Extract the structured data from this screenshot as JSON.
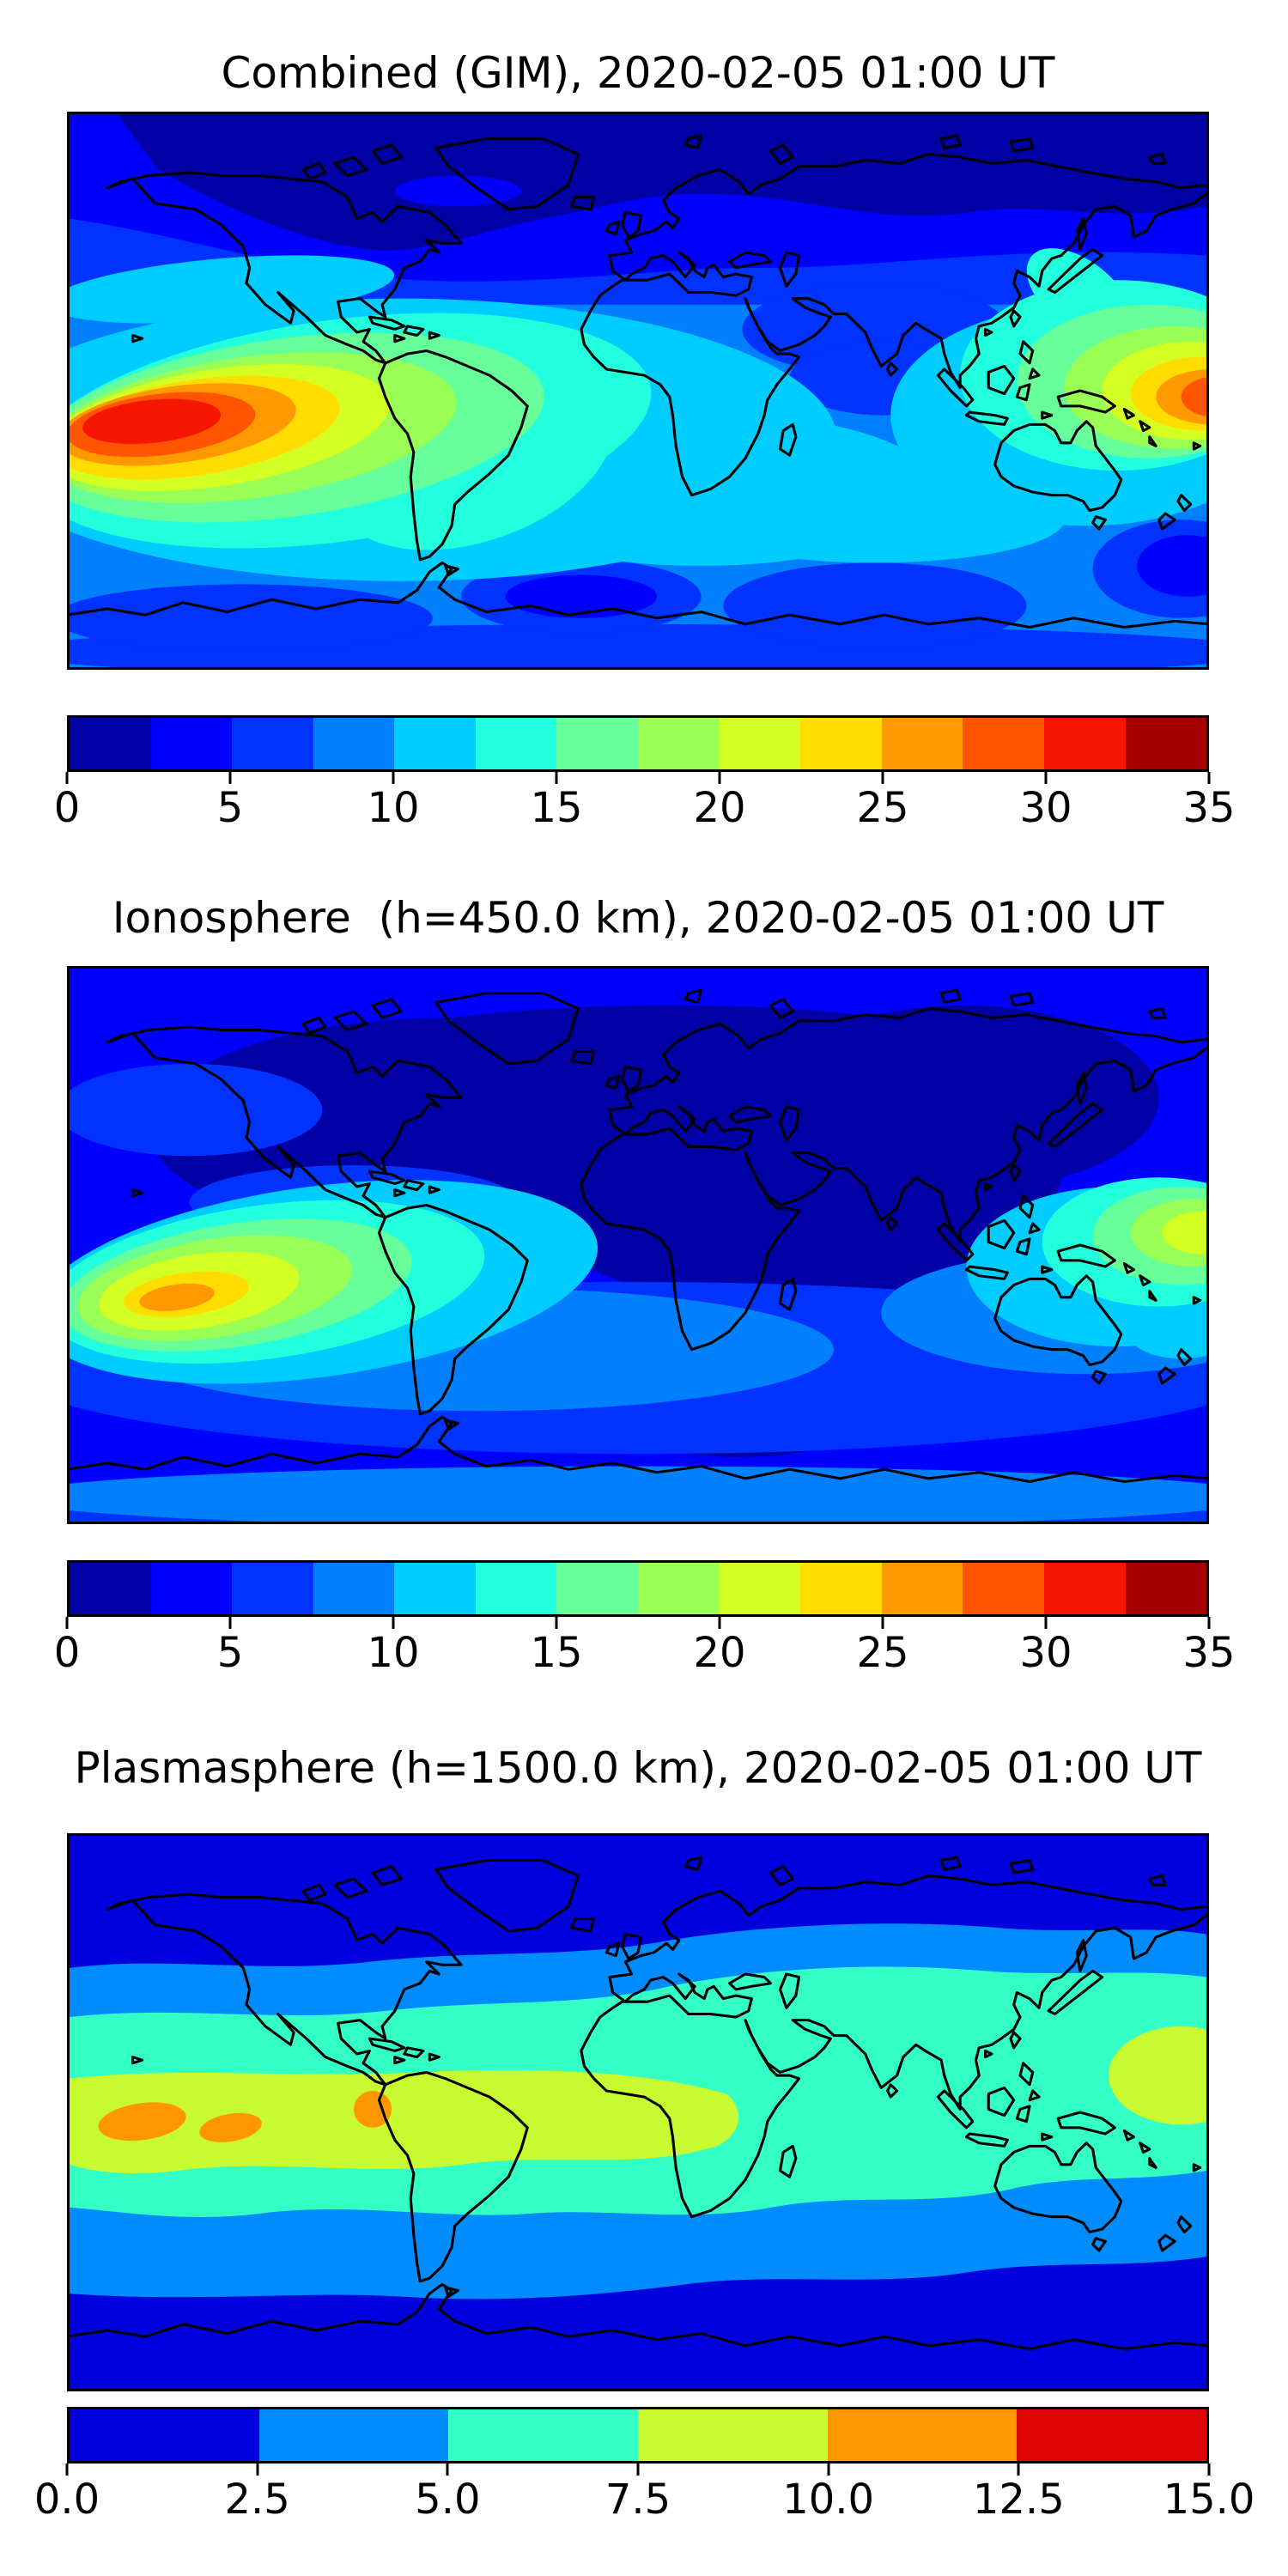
{
  "figure": {
    "background_color": "#ffffff",
    "description": "Three stacked filled-contour global maps of total electron content with horizontal jet colorbars",
    "timestamp": "2020-02-05 01:00 UT"
  },
  "chart_data": [
    {
      "type": "heatmap",
      "subtype": "filled contour map, equirectangular world projection with black coastlines",
      "title": "Combined (GIM), 2020-02-05 01:00 UT",
      "layer": "Combined (GIM)",
      "timestamp": "2020-02-05 01:00 UT",
      "map_extent": {
        "lon": [
          -180,
          180
        ],
        "lat": [
          -90,
          90
        ]
      },
      "coastline_color": "#000000",
      "colorbar": {
        "orientation": "horizontal",
        "min": 0,
        "max": 35,
        "level_step": 2.5,
        "ticks": [
          "0",
          "5",
          "10",
          "15",
          "20",
          "25",
          "30",
          "35"
        ],
        "segment_colors": [
          "#0000a4",
          "#0000ff",
          "#0033ff",
          "#0080ff",
          "#00ccff",
          "#22ffdd",
          "#66ff99",
          "#99ff55",
          "#d4ff22",
          "#ffdd00",
          "#ff9900",
          "#ff5500",
          "#f51500",
          "#a60000"
        ]
      },
      "features": [
        {
          "name": "primary maximum, south-central Pacific west of South America",
          "approx_lon": -150,
          "approx_lat": -16,
          "peak_band": "30 to 32.5",
          "peak_color": "#f51500"
        },
        {
          "name": "secondary maximum, western Pacific near New Guinea (touches right edge)",
          "approx_lon": 178,
          "approx_lat": -5,
          "peak_band": "27.5 to 30",
          "peak_color": "#ff5500"
        },
        {
          "name": "South America covered by 12.5-15 turquoise band",
          "approx_lon": -60,
          "approx_lat": -20
        },
        {
          "name": "high-latitude northern minimum over Arctic/Canada/Siberia",
          "band": "0 to 2.5"
        },
        {
          "name": "local minima in far southern ocean (south Atlantic, south of Australia)",
          "band": "2.5 to 5"
        },
        {
          "name": "mid/low-latitude background",
          "band": "7.5 to 12.5"
        }
      ]
    },
    {
      "type": "heatmap",
      "subtype": "filled contour map, equirectangular world projection with black coastlines",
      "title": "Ionosphere  (h=450.0 km), 2020-02-05 01:00 UT",
      "layer": "Ionosphere",
      "height_label": "h=450.0 km",
      "timestamp": "2020-02-05 01:00 UT",
      "map_extent": {
        "lon": [
          -180,
          180
        ],
        "lat": [
          -90,
          90
        ]
      },
      "coastline_color": "#000000",
      "colorbar": {
        "orientation": "horizontal",
        "min": 0,
        "max": 35,
        "level_step": 2.5,
        "ticks": [
          "0",
          "5",
          "10",
          "15",
          "20",
          "25",
          "30",
          "35"
        ],
        "segment_colors": [
          "#0000a4",
          "#0000ff",
          "#0033ff",
          "#0080ff",
          "#00ccff",
          "#22ffdd",
          "#66ff99",
          "#99ff55",
          "#d4ff22",
          "#ffdd00",
          "#ff9900",
          "#ff5500",
          "#f51500",
          "#a60000"
        ]
      },
      "features": [
        {
          "name": "maximum, south-central Pacific",
          "approx_lon": -150,
          "approx_lat": -20,
          "peak_band": "25 to 27.5",
          "peak_color": "#ff9900"
        },
        {
          "name": "secondary maximum, western Pacific near right edge",
          "approx_lon": 178,
          "approx_lat": -4,
          "peak_band": "20 to 22.5",
          "peak_color": "#d4ff22"
        },
        {
          "name": "broad deep minimum over North America, Atlantic, Europe, Africa and Asia",
          "band": "0 to 2.5"
        },
        {
          "name": "southern ocean and Antarctic coast",
          "band": "5 to 10"
        }
      ]
    },
    {
      "type": "heatmap",
      "subtype": "filled contour map, equirectangular world projection with black coastlines",
      "title": "Plasmasphere (h=1500.0 km), 2020-02-05 01:00 UT",
      "layer": "Plasmasphere",
      "height_label": "h=1500.0 km",
      "timestamp": "2020-02-05 01:00 UT",
      "map_extent": {
        "lon": [
          -180,
          180
        ],
        "lat": [
          -90,
          90
        ]
      },
      "coastline_color": "#000000",
      "colorbar": {
        "orientation": "horizontal",
        "min": 0,
        "max": 15,
        "level_step": 2.5,
        "ticks": [
          "0.0",
          "2.5",
          "5.0",
          "7.5",
          "10.0",
          "12.5",
          "15.0"
        ],
        "segment_colors": [
          "#0000dc",
          "#008cff",
          "#33ffc4",
          "#c8fa32",
          "#ff9800",
          "#e00505"
        ]
      },
      "features": [
        {
          "name": "zonal banded structure symmetric about the magnetic equator"
        },
        {
          "name": "equatorial yellow-green band (7.5-10) from 180W across South America/Atlantic/Africa, plus western Pacific patch",
          "band": "7.5 to 10"
        },
        {
          "name": "orange spots 10-12.5 in central Pacific near 155W and 130W, lat ~ -3",
          "peak_color": "#ff9800"
        },
        {
          "name": "orange spot 10-12.5 at Ecuador/Peru coast near 84W",
          "peak_color": "#ff9800"
        },
        {
          "name": "polar regions minimum",
          "band": "0 to 2.5"
        }
      ]
    }
  ]
}
